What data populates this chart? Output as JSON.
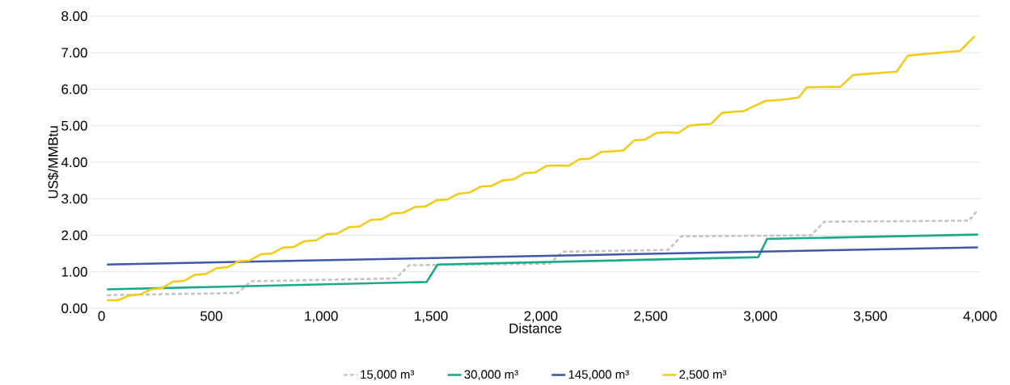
{
  "chart_data": {
    "type": "line",
    "xlabel": "Distance",
    "ylabel": "US$/MMBtu",
    "xlim": [
      -50,
      4000
    ],
    "ylim": [
      0,
      8
    ],
    "xticks": [
      0,
      500,
      {
        "value": 1000,
        "label": "1,000"
      },
      {
        "value": 1500,
        "label": "1,500"
      },
      {
        "value": 2000,
        "label": "2,000"
      },
      {
        "value": 2500,
        "label": "2,500"
      },
      {
        "value": 3000,
        "label": "3,000"
      },
      {
        "value": 3500,
        "label": "3,500"
      },
      {
        "value": 4000,
        "label": "4,000"
      }
    ],
    "yticks": [
      {
        "value": 0,
        "label": "0.00"
      },
      {
        "value": 1,
        "label": "1.00"
      },
      {
        "value": 2,
        "label": "2.00"
      },
      {
        "value": 3,
        "label": "3.00"
      },
      {
        "value": 4,
        "label": "4.00"
      },
      {
        "value": 5,
        "label": "5.00"
      },
      {
        "value": 6,
        "label": "6.00"
      },
      {
        "value": 7,
        "label": "7.00"
      },
      {
        "value": 8,
        "label": "8.00"
      }
    ],
    "grid": "y",
    "legend": "bottom",
    "series": [
      {
        "name": "15,000 m³",
        "color": "#c4c4c4",
        "line_style": "dashed",
        "x": [
          25,
          620,
          680,
          1340,
          1400,
          2040,
          2100,
          2580,
          2640,
          3230,
          3290,
          3950,
          3990
        ],
        "values": [
          0.36,
          0.42,
          0.74,
          0.82,
          1.18,
          1.22,
          1.55,
          1.6,
          1.97,
          2.0,
          2.37,
          2.4,
          2.7
        ]
      },
      {
        "name": "30,000 m³",
        "color": "#1aaa8a",
        "line_style": "solid",
        "x": [
          25,
          1480,
          1530,
          2990,
          3030,
          3990
        ],
        "values": [
          0.52,
          0.72,
          1.2,
          1.4,
          1.9,
          2.02
        ]
      },
      {
        "name": "145,000 m³",
        "color": "#3f58a8",
        "line_style": "solid",
        "x": [
          25,
          3990
        ],
        "values": [
          1.2,
          1.67
        ]
      },
      {
        "name": "2,500 m³",
        "color": "#f2cc1a",
        "line_style": "solid",
        "x": [
          25,
          75,
          125,
          175,
          225,
          275,
          325,
          375,
          425,
          475,
          525,
          575,
          625,
          675,
          725,
          775,
          825,
          875,
          925,
          975,
          1025,
          1075,
          1125,
          1175,
          1225,
          1275,
          1325,
          1375,
          1425,
          1475,
          1525,
          1575,
          1625,
          1675,
          1725,
          1775,
          1825,
          1875,
          1925,
          1975,
          2025,
          2075,
          2125,
          2175,
          2225,
          2275,
          2325,
          2375,
          2425,
          2475,
          2525,
          2575,
          2625,
          2675,
          2725,
          2775,
          2825,
          2875,
          2925,
          2975,
          3025,
          3075,
          3125,
          3175,
          3210,
          3364,
          3422,
          3620,
          3671,
          3909,
          3975
        ],
        "values": [
          0.22,
          0.22,
          0.35,
          0.38,
          0.52,
          0.55,
          0.73,
          0.75,
          0.92,
          0.94,
          1.1,
          1.13,
          1.29,
          1.31,
          1.48,
          1.5,
          1.66,
          1.68,
          1.84,
          1.86,
          2.03,
          2.05,
          2.22,
          2.24,
          2.42,
          2.44,
          2.6,
          2.62,
          2.77,
          2.79,
          2.96,
          2.98,
          3.14,
          3.17,
          3.33,
          3.35,
          3.5,
          3.53,
          3.7,
          3.72,
          3.9,
          3.91,
          3.9,
          4.08,
          4.1,
          4.28,
          4.3,
          4.32,
          4.6,
          4.62,
          4.8,
          4.82,
          4.8,
          5.0,
          5.03,
          5.05,
          5.35,
          5.38,
          5.4,
          5.55,
          5.68,
          5.7,
          5.73,
          5.78,
          6.05,
          6.07,
          6.39,
          6.48,
          6.92,
          7.05,
          7.45
        ]
      }
    ]
  }
}
